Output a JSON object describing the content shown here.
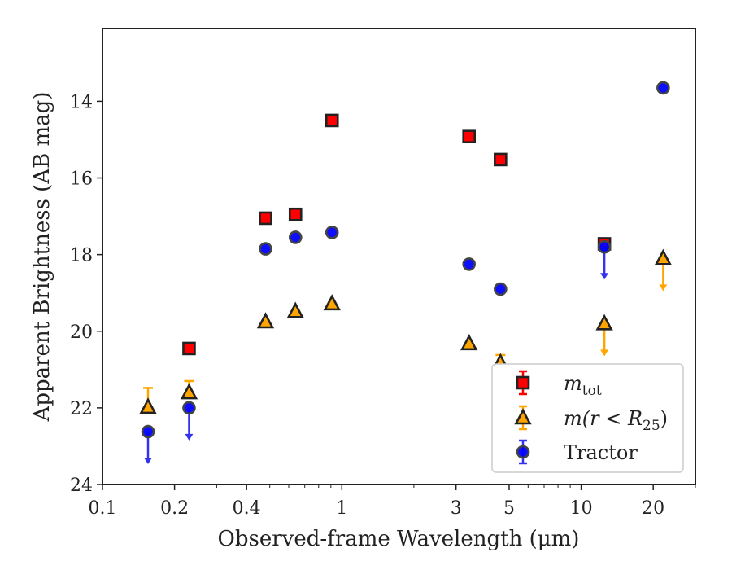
{
  "chart_data": {
    "type": "scatter",
    "title": "",
    "xlabel": "Observed-frame Wavelength (μm)",
    "ylabel": "Apparent Brightness (AB mag)",
    "xscale": "log",
    "xlim": [
      0.1,
      30
    ],
    "ylim": [
      24,
      12.1
    ],
    "y_inverted": true,
    "grid": false,
    "legend_position": "bottom-right",
    "x_ticks": [
      {
        "value": 0.1,
        "label": "0.1"
      },
      {
        "value": 0.2,
        "label": "0.2"
      },
      {
        "value": 0.4,
        "label": "0.4"
      },
      {
        "value": 1,
        "label": "1"
      },
      {
        "value": 3,
        "label": "3"
      },
      {
        "value": 5,
        "label": "5"
      },
      {
        "value": 10,
        "label": "10"
      },
      {
        "value": 20,
        "label": "20"
      }
    ],
    "y_ticks": [
      {
        "value": 14,
        "label": "14"
      },
      {
        "value": 16,
        "label": "16"
      },
      {
        "value": 18,
        "label": "18"
      },
      {
        "value": 20,
        "label": "20"
      },
      {
        "value": 22,
        "label": "22"
      },
      {
        "value": 24,
        "label": "24"
      }
    ],
    "series": [
      {
        "name": "m_tot",
        "legend_main": "m",
        "legend_sub": "tot",
        "legend_tail": "",
        "marker": "square",
        "color": "#ff0000",
        "error_color": "#ff0000",
        "points": [
          {
            "x": 0.23,
            "y": 20.45,
            "upper_limit": false
          },
          {
            "x": 0.48,
            "y": 17.05,
            "upper_limit": false
          },
          {
            "x": 0.64,
            "y": 16.95,
            "upper_limit": false
          },
          {
            "x": 0.91,
            "y": 14.5,
            "upper_limit": false
          },
          {
            "x": 3.4,
            "y": 14.92,
            "upper_limit": false
          },
          {
            "x": 4.6,
            "y": 15.52,
            "upper_limit": false
          },
          {
            "x": 12.5,
            "y": 17.72,
            "upper_limit": false
          }
        ]
      },
      {
        "name": "m(r < R25)",
        "legend_main": "m(r < R",
        "legend_sub": "25",
        "legend_tail": ")",
        "marker": "triangle",
        "color": "#ffa500",
        "error_color": "#ffa500",
        "points": [
          {
            "x": 0.155,
            "y": 21.98,
            "upper_limit": false,
            "err_up": 0.5
          },
          {
            "x": 0.23,
            "y": 21.6,
            "upper_limit": false,
            "err_up": 0.3
          },
          {
            "x": 0.48,
            "y": 19.75,
            "upper_limit": false
          },
          {
            "x": 0.64,
            "y": 19.48,
            "upper_limit": false
          },
          {
            "x": 0.91,
            "y": 19.28,
            "upper_limit": false
          },
          {
            "x": 3.4,
            "y": 20.32,
            "upper_limit": false
          },
          {
            "x": 4.6,
            "y": 20.82,
            "upper_limit": false,
            "err_up": 0.2
          },
          {
            "x": 12.5,
            "y": 19.8,
            "upper_limit": true
          },
          {
            "x": 22,
            "y": 18.1,
            "upper_limit": true
          }
        ]
      },
      {
        "name": "Tractor",
        "legend_main": "Tractor",
        "legend_sub": "",
        "legend_tail": "",
        "marker": "circle",
        "color": "#0000ff",
        "error_color": "#3333ee",
        "points": [
          {
            "x": 0.155,
            "y": 22.62,
            "upper_limit": true
          },
          {
            "x": 0.23,
            "y": 22.0,
            "upper_limit": true
          },
          {
            "x": 0.48,
            "y": 17.85,
            "upper_limit": false
          },
          {
            "x": 0.64,
            "y": 17.55,
            "upper_limit": false
          },
          {
            "x": 0.91,
            "y": 17.42,
            "upper_limit": false
          },
          {
            "x": 3.4,
            "y": 18.25,
            "upper_limit": false
          },
          {
            "x": 4.6,
            "y": 18.9,
            "upper_limit": false
          },
          {
            "x": 12.5,
            "y": 17.8,
            "upper_limit": true
          },
          {
            "x": 22,
            "y": 13.65,
            "upper_limit": false
          }
        ]
      }
    ]
  }
}
